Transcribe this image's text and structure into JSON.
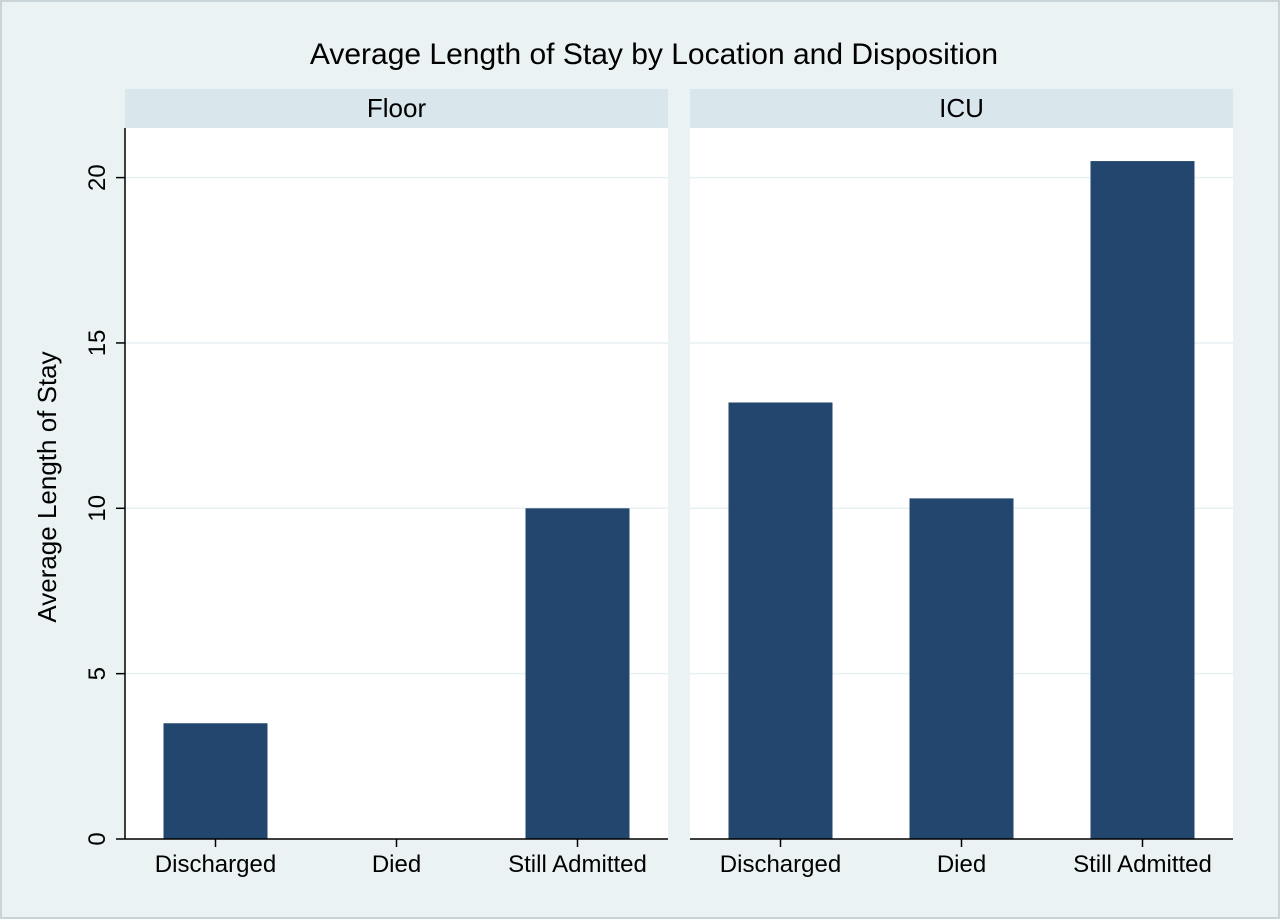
{
  "chart_data": {
    "type": "bar",
    "title": "Average Length of Stay by Location and Disposition",
    "ylabel": "Average Length of Stay",
    "xlabel": "",
    "ylim": [
      0,
      21.5
    ],
    "yticks": [
      0,
      5,
      10,
      15,
      20
    ],
    "grid": true,
    "categories": [
      "Discharged",
      "Died",
      "Still Admitted"
    ],
    "panels": [
      {
        "name": "Floor",
        "values": [
          3.5,
          0,
          10.0
        ]
      },
      {
        "name": "ICU",
        "values": [
          13.2,
          10.3,
          20.5
        ]
      }
    ],
    "colors": {
      "bar": "#23466e",
      "outer_background": "#eaf2f3",
      "panel_header": "#d9e6eb",
      "plot_background": "#ffffff",
      "grid": "#e8f0f2",
      "axis": "#000000"
    }
  }
}
